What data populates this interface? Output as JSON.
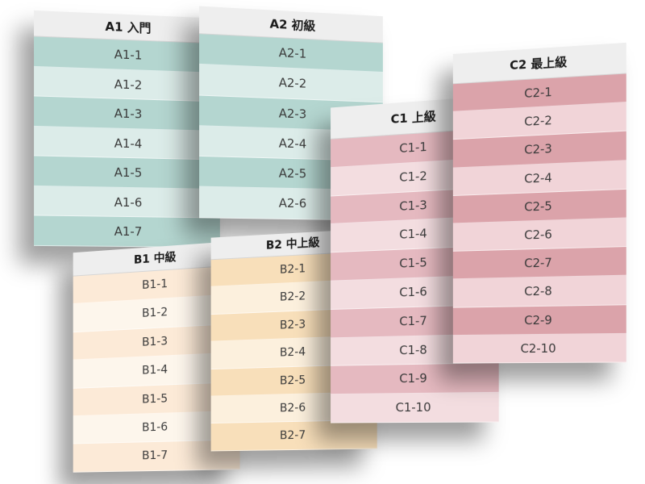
{
  "levels": [
    {
      "id": "a1",
      "title": "A1 入門",
      "colors": {
        "dark": "#b4d6d0",
        "light": "#dcece9"
      },
      "items": [
        "A1-1",
        "A1-2",
        "A1-3",
        "A1-4",
        "A1-5",
        "A1-6",
        "A1-7"
      ]
    },
    {
      "id": "a2",
      "title": "A2 初級",
      "colors": {
        "dark": "#b4d6d0",
        "light": "#dcece9"
      },
      "items": [
        "A2-1",
        "A2-2",
        "A2-3",
        "A2-4",
        "A2-5",
        "A2-6"
      ]
    },
    {
      "id": "b1",
      "title": "B1 中級",
      "colors": {
        "dark": "#fcead7",
        "light": "#fdf6ec"
      },
      "items": [
        "B1-1",
        "B1-2",
        "B1-3",
        "B1-4",
        "B1-5",
        "B1-6",
        "B1-7"
      ]
    },
    {
      "id": "b2",
      "title": "B2 中上級",
      "colors": {
        "dark": "#f8dfba",
        "light": "#fcf0dd"
      },
      "items": [
        "B2-1",
        "B2-2",
        "B2-3",
        "B2-4",
        "B2-5",
        "B2-6",
        "B2-7"
      ]
    },
    {
      "id": "c1",
      "title": "C1 上級",
      "colors": {
        "dark": "#e5b9c0",
        "light": "#f3dde0"
      },
      "items": [
        "C1-1",
        "C1-2",
        "C1-3",
        "C1-4",
        "C1-5",
        "C1-6",
        "C1-7",
        "C1-8",
        "C1-9",
        "C1-10"
      ]
    },
    {
      "id": "c2",
      "title": "C2 最上級",
      "colors": {
        "dark": "#dba3aa",
        "light": "#f1d4d8"
      },
      "items": [
        "C2-1",
        "C2-2",
        "C2-3",
        "C2-4",
        "C2-5",
        "C2-6",
        "C2-7",
        "C2-8",
        "C2-9",
        "C2-10"
      ]
    }
  ]
}
